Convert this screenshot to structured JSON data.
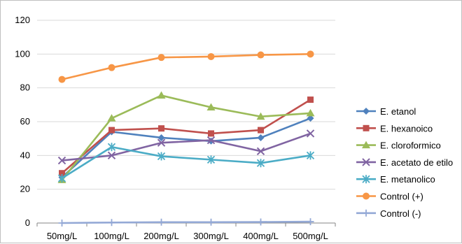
{
  "chart_data": {
    "type": "line",
    "categories": [
      "50mg/L",
      "100mg/L",
      "200mg/L",
      "300mg/L",
      "400mg/L",
      "500mg/L"
    ],
    "ylim": [
      0,
      120
    ],
    "yticks": [
      0,
      20,
      40,
      60,
      80,
      100,
      120
    ],
    "grid": "horizontal",
    "legend_position": "right",
    "series": [
      {
        "name": "E. etanol",
        "values": [
          27,
          54,
          50.5,
          48.5,
          50.5,
          62
        ],
        "color": "#4f81bd",
        "marker": "diamond"
      },
      {
        "name": "E. hexanoico",
        "values": [
          29.5,
          55,
          56,
          53,
          55,
          73
        ],
        "color": "#c0504d",
        "marker": "square"
      },
      {
        "name": "E. cloroformico",
        "values": [
          25.5,
          62,
          75.5,
          68.5,
          63,
          65
        ],
        "color": "#9bbb59",
        "marker": "triangle"
      },
      {
        "name": "E. acetato de etilo",
        "values": [
          37,
          40,
          47.5,
          49,
          42.5,
          53
        ],
        "color": "#8064a2",
        "marker": "x"
      },
      {
        "name": "E. metanolico",
        "values": [
          26.5,
          45,
          39.5,
          37.5,
          35.5,
          40
        ],
        "color": "#4bacc6",
        "marker": "star"
      },
      {
        "name": "Control (+)",
        "values": [
          85,
          92,
          98,
          98.5,
          99.5,
          100
        ],
        "color": "#f79646",
        "marker": "circle"
      },
      {
        "name": "Control (-)",
        "values": [
          0,
          0.3,
          0.5,
          0.5,
          0.6,
          0.8
        ],
        "color": "#94a9d6",
        "marker": "plus"
      }
    ]
  }
}
